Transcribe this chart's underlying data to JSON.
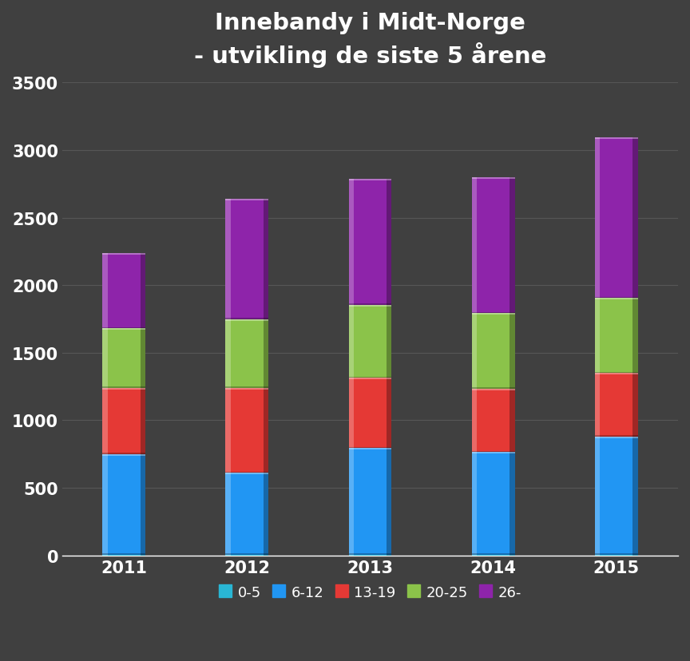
{
  "title": "Innebandy i Midt-Norge\n- utvikling de siste 5 årene",
  "years": [
    "2011",
    "2012",
    "2013",
    "2014",
    "2015"
  ],
  "categories": [
    "0-5",
    "6-12",
    "13-19",
    "20-25",
    "26-"
  ],
  "values": {
    "0-5": [
      5,
      5,
      5,
      5,
      5
    ],
    "6-12": [
      745,
      605,
      790,
      760,
      875
    ],
    "13-19": [
      490,
      630,
      520,
      470,
      470
    ],
    "20-25": [
      440,
      510,
      540,
      560,
      555
    ],
    "26-": [
      560,
      890,
      930,
      1005,
      1190
    ]
  },
  "colors": {
    "0-5": "#29b6d4",
    "6-12": "#2196f3",
    "13-19": "#e53935",
    "20-25": "#8bc34a",
    "26-": "#8e24aa"
  },
  "ylim": [
    0,
    3500
  ],
  "yticks": [
    0,
    500,
    1000,
    1500,
    2000,
    2500,
    3000,
    3500
  ],
  "background_color": "#404040",
  "text_color": "#ffffff",
  "grid_color": "#606060",
  "title_fontsize": 21,
  "tick_fontsize": 15,
  "legend_fontsize": 13,
  "bar_width": 0.35
}
